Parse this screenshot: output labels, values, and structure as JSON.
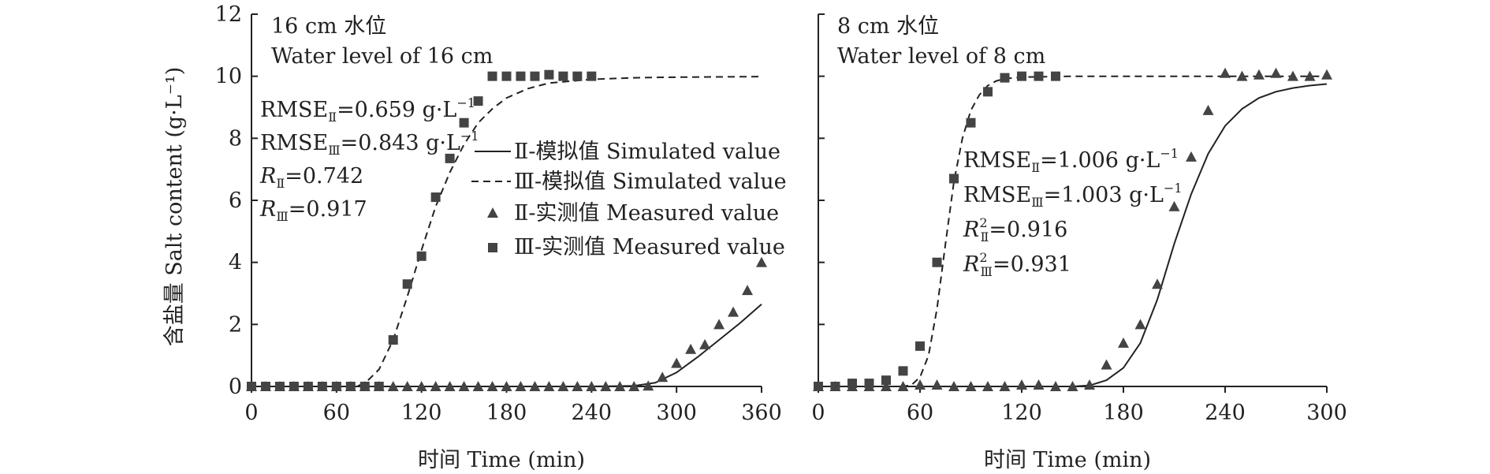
{
  "ylabel": "含盐量 Salt content (g·L⁻¹)",
  "y_ticks": [
    "0",
    "2",
    "4",
    "6",
    "8",
    "10",
    "12"
  ],
  "legend": {
    "sim2": "Ⅱ-模拟值 Simulated value",
    "sim3": "Ⅲ-模拟值 Simulated value",
    "meas2": "Ⅱ-实测值 Measured value",
    "meas3": "Ⅲ-实测值 Measured value"
  },
  "colors": {
    "ink": "#222222",
    "marker": "#444444"
  },
  "chart_data": [
    {
      "type": "scatter",
      "title": "16 cm 水位",
      "subtitle": "Water level of 16 cm",
      "xlabel": "时间 Time (min)",
      "ylabel": "含盐量 Salt content (g·L⁻¹)",
      "xlim": [
        0,
        360
      ],
      "ylim": [
        0,
        12
      ],
      "x_ticks": [
        "0",
        "60",
        "120",
        "180",
        "240",
        "300",
        "360"
      ],
      "stats": {
        "rmse2_label": "RMSE",
        "rmse2_sub": "Ⅱ",
        "rmse2_val": "=0.659 g·L",
        "rmse2_unit_sup": "−1",
        "rmse3_label": "RMSE",
        "rmse3_sub": "Ⅲ",
        "rmse3_val": "=0.843 g·L",
        "rmse3_unit_sup": "−1",
        "r2_label": "R",
        "r2_sub": "Ⅱ",
        "r2_val": "=0.742",
        "r3_label": "R",
        "r3_sub": "Ⅲ",
        "r3_val": "=0.917"
      },
      "series": [
        {
          "name": "Ⅱ-模拟值 Simulated value",
          "kind": "line-solid",
          "x": [
            0,
            30,
            60,
            90,
            120,
            150,
            180,
            210,
            240,
            270,
            285,
            300,
            315,
            330,
            345,
            360
          ],
          "y": [
            0,
            0,
            0,
            0,
            0,
            0,
            0,
            0,
            0,
            0.02,
            0.12,
            0.45,
            0.95,
            1.5,
            2.05,
            2.65
          ]
        },
        {
          "name": "Ⅲ-模拟值 Simulated value",
          "kind": "line-dashed",
          "x": [
            0,
            60,
            75,
            80,
            90,
            100,
            110,
            120,
            130,
            140,
            150,
            160,
            170,
            180,
            195,
            210,
            240,
            270,
            300,
            330,
            360
          ],
          "y": [
            0,
            0,
            0.02,
            0.1,
            0.55,
            1.5,
            2.9,
            4.4,
            5.8,
            6.9,
            7.8,
            8.5,
            8.95,
            9.3,
            9.6,
            9.78,
            9.9,
            9.95,
            9.97,
            9.98,
            9.99
          ]
        },
        {
          "name": "Ⅱ-实测值 Measured value",
          "kind": "triangle",
          "x": [
            0,
            10,
            20,
            30,
            40,
            50,
            60,
            70,
            80,
            90,
            100,
            110,
            120,
            130,
            140,
            150,
            160,
            170,
            180,
            190,
            200,
            210,
            220,
            230,
            240,
            250,
            260,
            270,
            280,
            290,
            300,
            310,
            320,
            330,
            340,
            350,
            360
          ],
          "y": [
            0,
            0,
            0,
            0,
            0,
            0,
            0,
            0,
            0,
            0,
            0,
            0,
            0,
            0,
            0,
            0,
            0,
            0,
            0,
            0,
            0,
            0,
            0,
            0,
            0,
            0,
            0,
            0,
            0.02,
            0.3,
            0.75,
            1.2,
            1.35,
            2.0,
            2.4,
            3.1,
            4.0
          ]
        },
        {
          "name": "Ⅲ-实测值 Measured value",
          "kind": "square",
          "x": [
            0,
            10,
            20,
            30,
            40,
            50,
            60,
            70,
            80,
            90,
            100,
            110,
            120,
            130,
            140,
            150,
            160,
            170,
            180,
            190,
            200,
            210,
            220,
            230,
            240
          ],
          "y": [
            0,
            0,
            0,
            0,
            0,
            0,
            0,
            0,
            0,
            0,
            1.5,
            3.3,
            4.2,
            6.1,
            7.35,
            8.5,
            9.2,
            10.0,
            10.0,
            10.0,
            10.0,
            10.05,
            10.0,
            10.0,
            10.0
          ]
        }
      ]
    },
    {
      "type": "scatter",
      "title": "8 cm 水位",
      "subtitle": "Water level of 8 cm",
      "xlabel": "时间 Time (min)",
      "ylabel": "",
      "xlim": [
        0,
        300
      ],
      "ylim": [
        0,
        12
      ],
      "x_ticks": [
        "0",
        "60",
        "120",
        "180",
        "240",
        "300"
      ],
      "stats": {
        "rmse2_label": "RMSE",
        "rmse2_sub": "Ⅱ",
        "rmse2_val": "=1.006 g·L",
        "rmse2_unit_sup": "−1",
        "rmse3_label": "RMSE",
        "rmse3_sub": "Ⅲ",
        "rmse3_val": "=1.003 g·L",
        "rmse3_unit_sup": "−1",
        "r2_label": "R",
        "r2_sup": "2",
        "r2_sub": "Ⅱ",
        "r2_val": "=0.916",
        "r3_label": "R",
        "r3_sup": "2",
        "r3_sub": "Ⅲ",
        "r3_val": "=0.931"
      },
      "series": [
        {
          "name": "Ⅱ-模拟值 Simulated value",
          "kind": "line-solid",
          "x": [
            0,
            150,
            160,
            170,
            180,
            190,
            200,
            210,
            220,
            230,
            240,
            250,
            260,
            270,
            280,
            290,
            300
          ],
          "y": [
            0,
            0,
            0.03,
            0.2,
            0.6,
            1.4,
            2.8,
            4.6,
            6.2,
            7.5,
            8.4,
            8.95,
            9.3,
            9.5,
            9.62,
            9.7,
            9.75
          ]
        },
        {
          "name": "Ⅲ-模拟值 Simulated value",
          "kind": "line-dashed",
          "x": [
            0,
            50,
            55,
            60,
            65,
            70,
            75,
            80,
            85,
            90,
            95,
            100,
            105,
            110,
            120,
            150,
            180,
            210,
            240,
            270,
            300
          ],
          "y": [
            0,
            0,
            0.05,
            0.3,
            1.0,
            2.5,
            4.6,
            6.6,
            8.0,
            8.9,
            9.4,
            9.7,
            9.85,
            9.92,
            9.97,
            10.0,
            10.0,
            10.0,
            10.0,
            10.0,
            10.0
          ]
        },
        {
          "name": "Ⅱ-实测值 Measured value",
          "kind": "triangle",
          "x": [
            0,
            10,
            20,
            30,
            40,
            50,
            60,
            70,
            80,
            90,
            100,
            110,
            120,
            130,
            140,
            150,
            160,
            170,
            180,
            190,
            200,
            210,
            220,
            230,
            240,
            250,
            260,
            270,
            280,
            290,
            300
          ],
          "y": [
            0,
            0,
            0,
            0,
            0,
            0,
            0.05,
            0.05,
            0,
            0,
            0,
            0,
            0.05,
            0.05,
            0,
            0,
            0.05,
            0.7,
            1.4,
            2.0,
            3.3,
            5.8,
            7.4,
            8.9,
            10.1,
            10.0,
            10.05,
            10.1,
            10.0,
            10.0,
            10.05
          ]
        },
        {
          "name": "Ⅲ-实测值 Measured value",
          "kind": "square",
          "x": [
            0,
            10,
            20,
            30,
            40,
            50,
            60,
            70,
            80,
            90,
            100,
            110,
            120,
            130,
            140
          ],
          "y": [
            0,
            0,
            0.1,
            0.1,
            0.2,
            0.5,
            1.3,
            4.0,
            6.7,
            8.5,
            9.5,
            9.95,
            10.0,
            10.0,
            10.0
          ]
        }
      ]
    }
  ]
}
